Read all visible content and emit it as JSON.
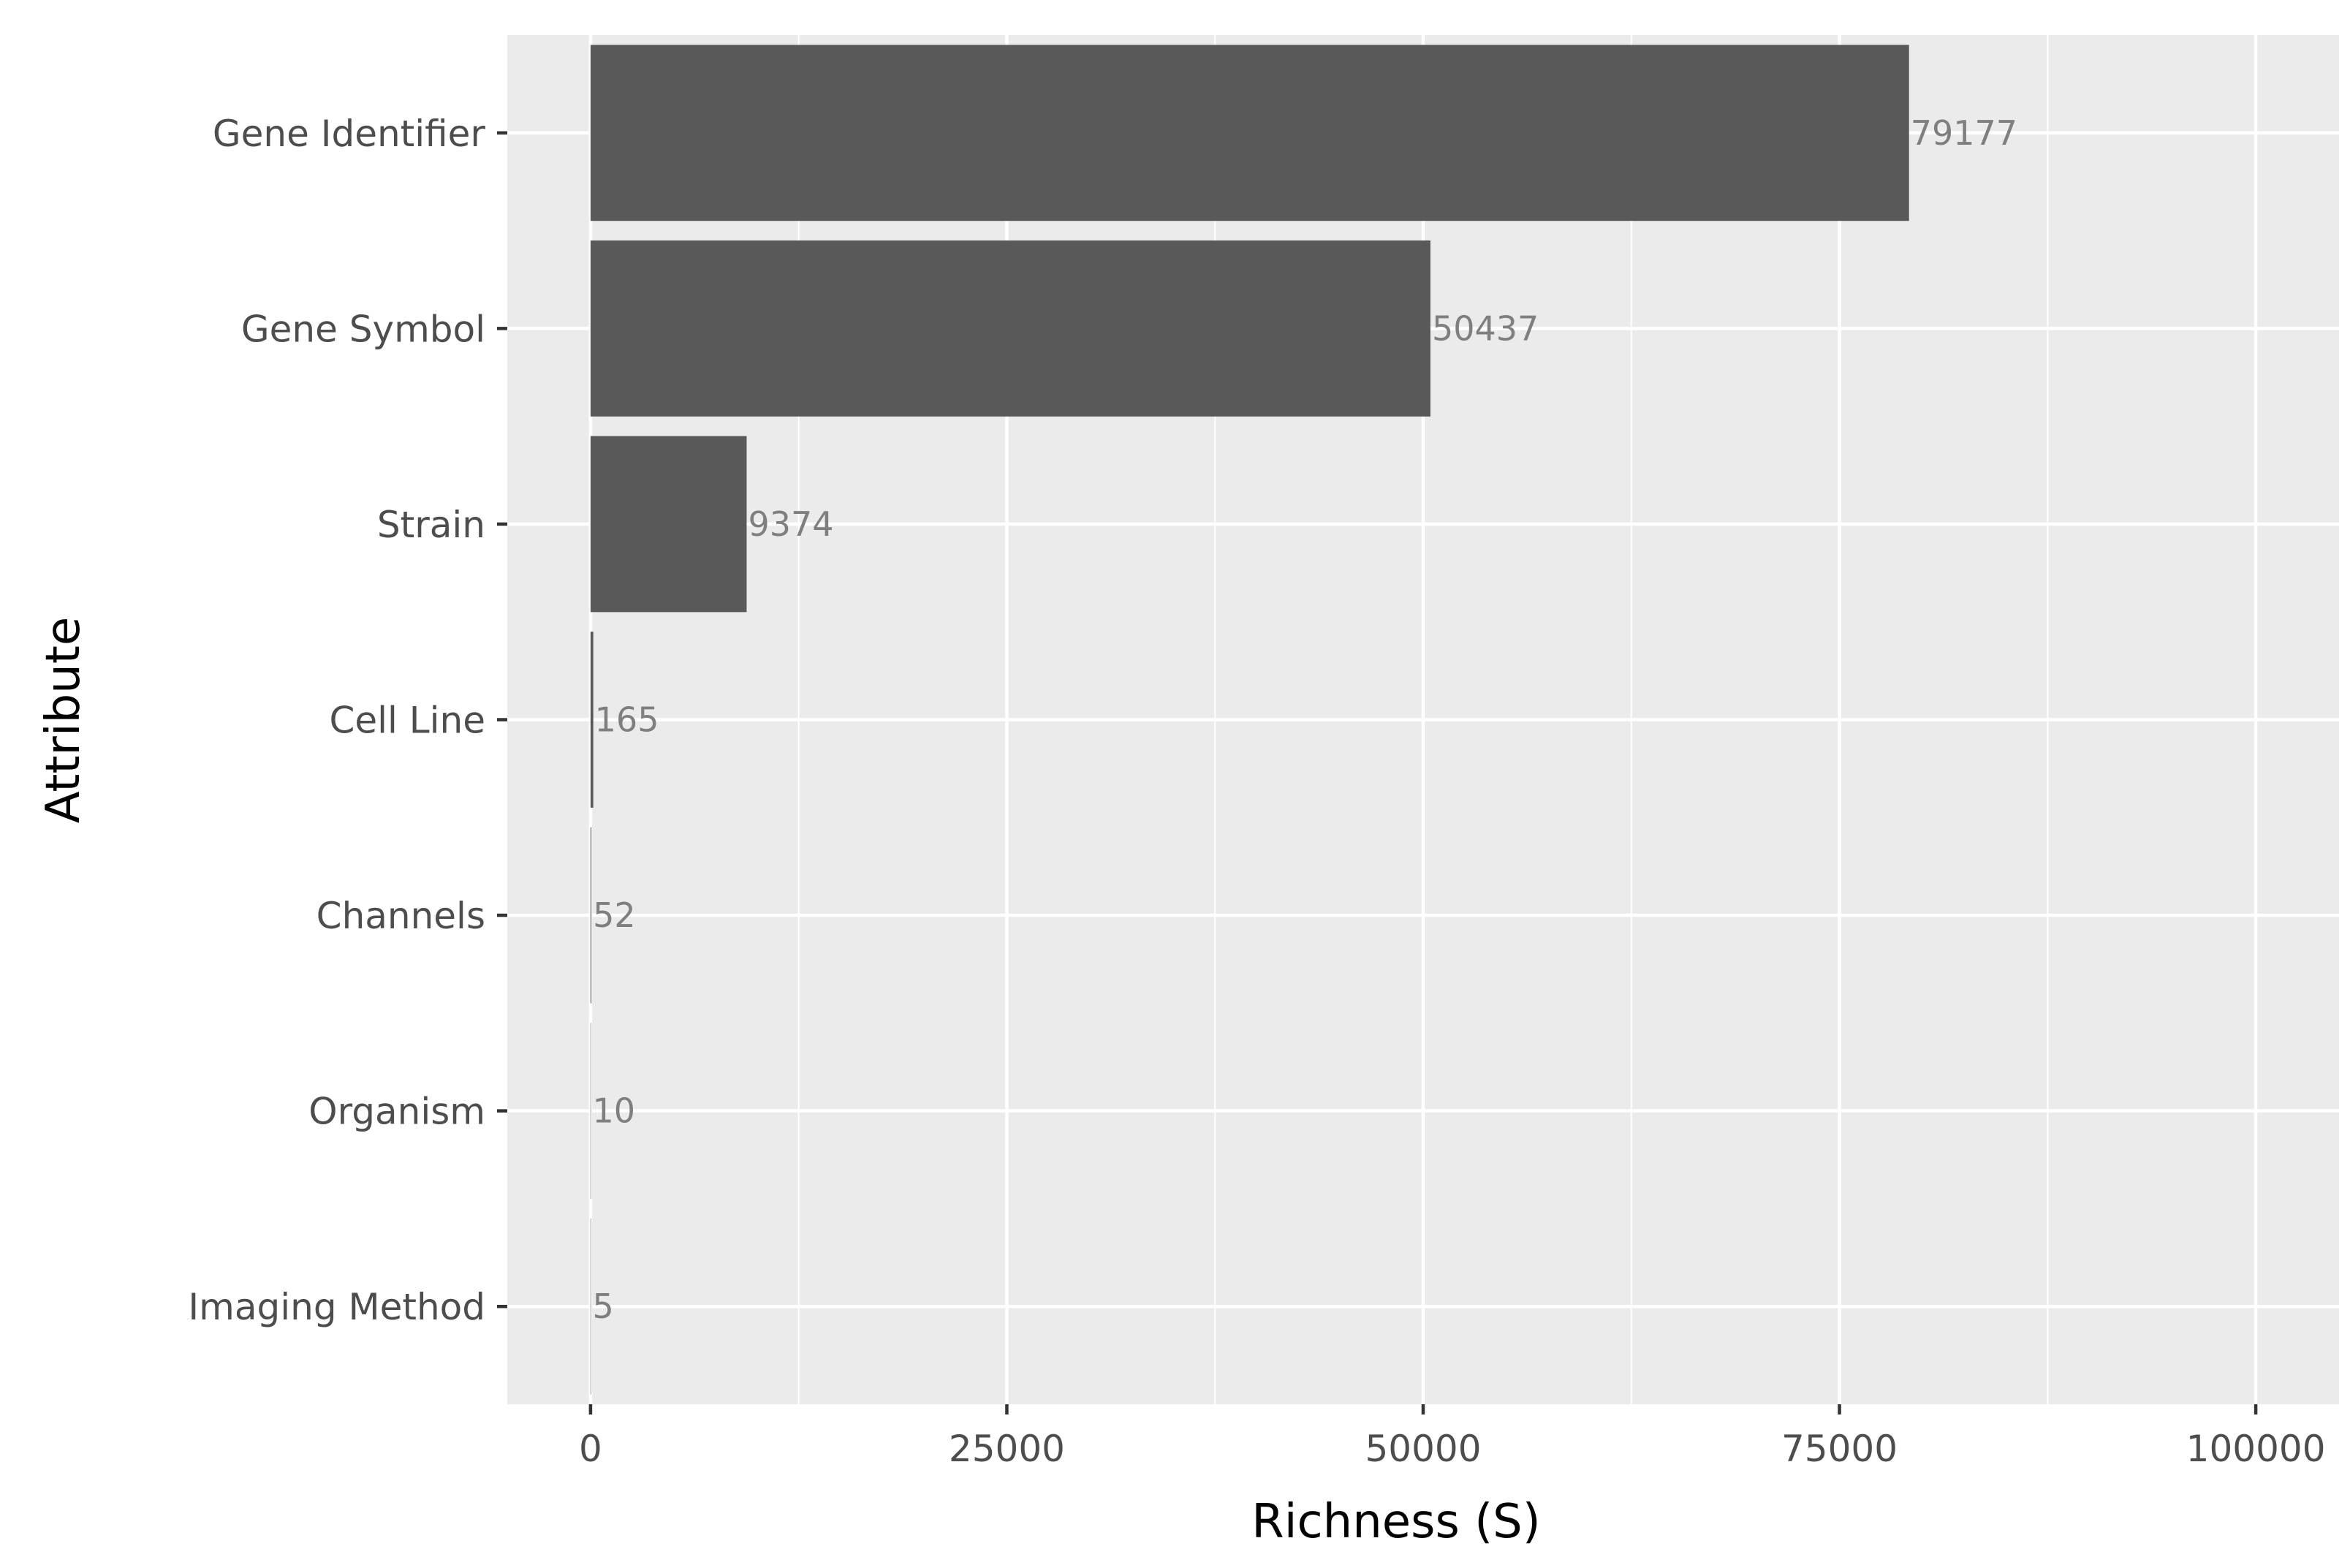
{
  "chart_data": {
    "type": "bar",
    "orientation": "horizontal",
    "categories": [
      "Gene Identifier",
      "Gene Symbol",
      "Strain",
      "Cell Line",
      "Channels",
      "Organism",
      "Imaging Method"
    ],
    "values": [
      79177,
      50437,
      9374,
      165,
      52,
      10,
      5
    ],
    "data_labels": [
      "79177",
      "50437",
      "9374",
      "165",
      "52",
      "10",
      "5"
    ],
    "xlabel": "Richness (S)",
    "ylabel": "Attribute",
    "xlim": [
      -5000,
      105000
    ],
    "x_ticks": [
      0,
      25000,
      50000,
      75000,
      100000
    ],
    "x_tick_labels": [
      "0",
      "25000",
      "50000",
      "75000",
      "100000"
    ],
    "grid": true,
    "legend": "none",
    "colors": {
      "bar": "#595959",
      "panel": "#ebebeb",
      "grid": "#ffffff",
      "tick_text": "#4d4d4d",
      "data_label": "#7f7f7f"
    }
  }
}
